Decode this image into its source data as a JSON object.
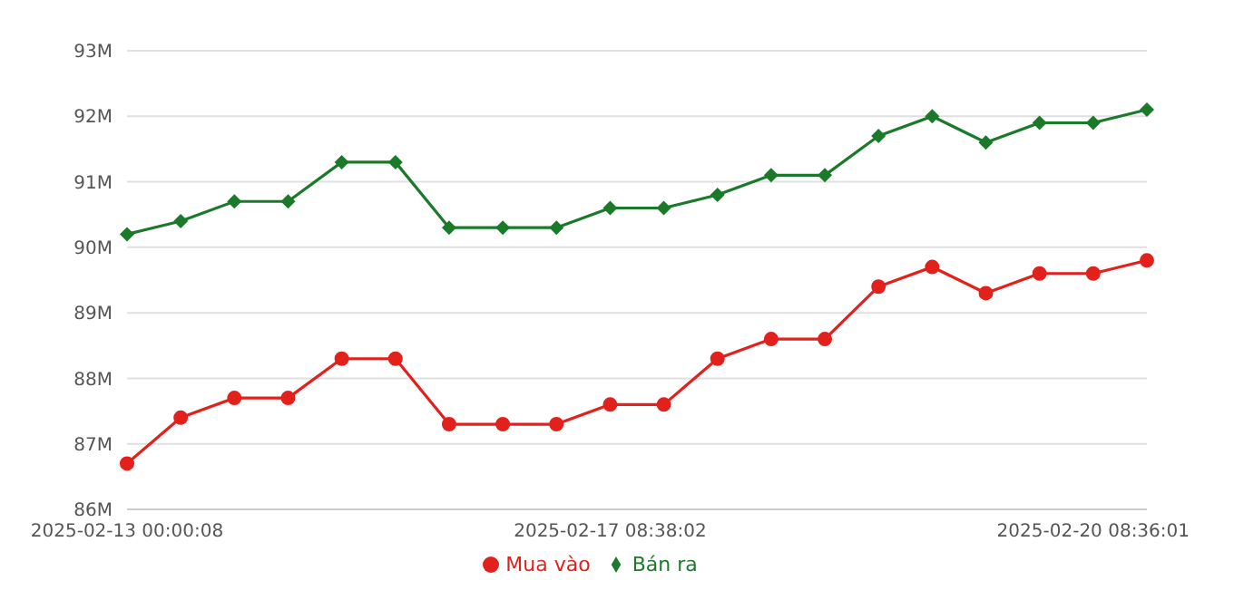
{
  "chart_data": {
    "type": "line",
    "categories": [
      "2025-02-13 00:00:08",
      null,
      null,
      null,
      null,
      null,
      null,
      null,
      null,
      "2025-02-17 08:38:02",
      null,
      null,
      null,
      null,
      null,
      null,
      null,
      null,
      "2025-02-20 08:36:01",
      null
    ],
    "series": [
      {
        "name": "Mua vào",
        "color": "#e3211c",
        "marker": "circle",
        "values": [
          86.7,
          87.4,
          87.7,
          87.7,
          88.3,
          88.3,
          87.3,
          87.3,
          87.3,
          87.6,
          87.6,
          88.3,
          88.6,
          88.6,
          89.4,
          89.7,
          89.3,
          89.6,
          89.6,
          89.8
        ]
      },
      {
        "name": "Bán ra",
        "color": "#1a7a2a",
        "marker": "diamond",
        "values": [
          90.2,
          90.4,
          90.7,
          90.7,
          91.3,
          91.3,
          90.3,
          90.3,
          90.3,
          90.6,
          90.6,
          90.8,
          91.1,
          91.1,
          91.7,
          92.0,
          91.6,
          91.9,
          91.9,
          92.1
        ]
      }
    ],
    "ylim": [
      86,
      93
    ],
    "yticks": [
      {
        "value": 86,
        "label": "86M"
      },
      {
        "value": 87,
        "label": "87M"
      },
      {
        "value": 88,
        "label": "88M"
      },
      {
        "value": 89,
        "label": "89M"
      },
      {
        "value": 90,
        "label": "90M"
      },
      {
        "value": 91,
        "label": "91M"
      },
      {
        "value": 92,
        "label": "92M"
      },
      {
        "value": 93,
        "label": "93M"
      }
    ],
    "grid": "y",
    "legend": "bottom",
    "line_style": "solid"
  }
}
